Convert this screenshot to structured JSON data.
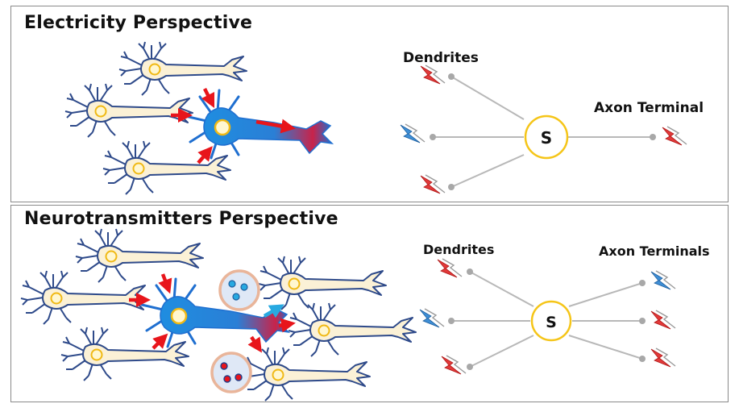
{
  "panels": {
    "top": {
      "title": "Electricity Perspective",
      "graph": {
        "dendrites_label": "Dendrites",
        "axon_label": "Axon Terminal",
        "soma_label": "S"
      }
    },
    "bottom": {
      "title": "Neurotransmitters Perspective",
      "graph": {
        "dendrites_label": "Dendrites",
        "axon_label": "Axon Terminals",
        "soma_label": "S"
      }
    }
  },
  "colors": {
    "neuron_fill": "#fbf1d6",
    "neuron_outline": "#2e4a8a",
    "active_neuron": "#1f8de0",
    "arrow_red": "#e8151b",
    "arrow_cyan": "#27a9e1",
    "soma_ring": "#f5c518",
    "bolt_red": "#e23a3a",
    "bolt_blue": "#3f8fd6",
    "vesicle_fill": "#dfe8f6",
    "vesicle_ring": "#e9b59a"
  },
  "icons": {
    "red_bolt": "lightning-bolt-red-icon",
    "blue_bolt": "lightning-bolt-blue-icon"
  }
}
